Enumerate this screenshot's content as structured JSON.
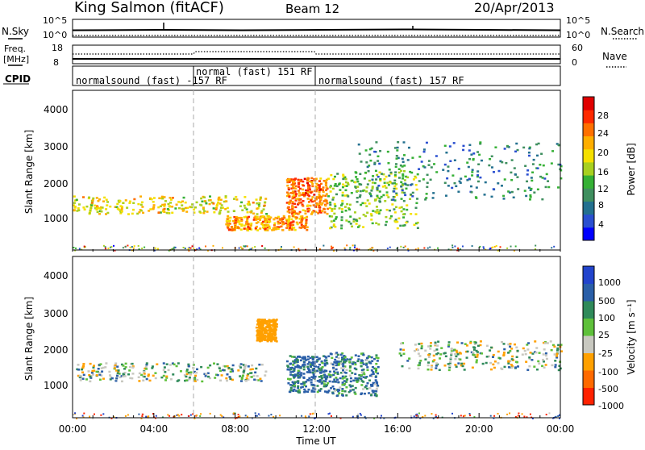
{
  "header": {
    "station": "King Salmon (fitACF)",
    "beam": "Beam 12",
    "date": "20/Apr/2013"
  },
  "strips": {
    "nsky_label": "N.Sky",
    "nsearch_label": "N.Search",
    "freq_label_1": "Freq.",
    "freq_label_2": "[MHz]",
    "nave_label": "Nave",
    "cpid_label": "CPID",
    "nsky_ticks": [
      "10^5",
      "10^0"
    ],
    "nsearch_ticks": [
      "10^5",
      "10^0"
    ],
    "freq_ticks": [
      "18",
      "8"
    ],
    "nave_ticks": [
      "60",
      "0"
    ],
    "cpid_segments": [
      {
        "label": "normalsound (fast) -157 RF",
        "start_h": 0,
        "end_h": 6
      },
      {
        "label": "normal (fast) 151 RF",
        "start_h": 6,
        "end_h": 12
      },
      {
        "label": "normalsound (fast) 157 RF",
        "start_h": 12,
        "end_h": 24
      }
    ]
  },
  "axes": {
    "ylabel": "Slant Range [km]",
    "xlabel": "Time UT",
    "yticks": [
      "1000",
      "2000",
      "3000",
      "4000"
    ],
    "xticks": [
      "00:00",
      "04:00",
      "08:00",
      "12:00",
      "16:00",
      "20:00",
      "00:00"
    ]
  },
  "power_colorbar": {
    "label": "Power [dB]",
    "ticks": [
      "4",
      "8",
      "12",
      "16",
      "20",
      "24",
      "28"
    ],
    "colors": [
      "#0000ff",
      "#2a4fd0",
      "#23708f",
      "#3f8f5f",
      "#35b035",
      "#a8d020",
      "#f5e000",
      "#ffae00",
      "#ff7000",
      "#ff2a00",
      "#e00000"
    ]
  },
  "velocity_colorbar": {
    "label": "Velocity [m s⁻¹]",
    "ticks": [
      "1000",
      "500",
      "100",
      "25",
      "-25",
      "-100",
      "-500",
      "-1000"
    ],
    "colors": [
      "#2244cc",
      "#2a5fa8",
      "#2f8a5a",
      "#5ec03a",
      "#c8c8c0",
      "#ffa000",
      "#ff6a00",
      "#ff2200"
    ]
  },
  "chart_data": [
    {
      "type": "heatmap",
      "title": "Power",
      "xlabel": "Time UT",
      "ylabel": "Slant Range [km]",
      "xlim": [
        0,
        24
      ],
      "ylim": [
        180,
        4600
      ],
      "zlabel": "Power [dB]",
      "zlim": [
        0,
        30
      ],
      "echo_regions": [
        {
          "t0": 0,
          "t1": 9.5,
          "r0": 1200,
          "r1": 1700,
          "power_db": 18
        },
        {
          "t0": 7.5,
          "t1": 11.5,
          "r0": 750,
          "r1": 1150,
          "power_db": 22
        },
        {
          "t0": 10.5,
          "t1": 12.5,
          "r0": 1200,
          "r1": 2200,
          "power_db": 24
        },
        {
          "t0": 12.5,
          "t1": 17,
          "r0": 800,
          "r1": 2400,
          "power_db": 14
        },
        {
          "t0": 14,
          "t1": 24,
          "r0": 1600,
          "r1": 3200,
          "power_db": 8
        }
      ]
    },
    {
      "type": "heatmap",
      "title": "Velocity",
      "xlabel": "Time UT",
      "ylabel": "Slant Range [km]",
      "xlim": [
        0,
        24
      ],
      "ylim": [
        180,
        4600
      ],
      "zlabel": "Velocity [m s⁻¹]",
      "zlim": [
        -1000,
        1000
      ],
      "echo_regions": [
        {
          "t0": 0,
          "t1": 9.5,
          "r0": 1200,
          "r1": 1700,
          "velocity": 0
        },
        {
          "t0": 9,
          "t1": 10,
          "r0": 2300,
          "r1": 2900,
          "velocity": -300
        },
        {
          "t0": 10.5,
          "t1": 12.5,
          "r0": 900,
          "r1": 1900,
          "velocity": 150
        },
        {
          "t0": 12.5,
          "t1": 15,
          "r0": 800,
          "r1": 2000,
          "velocity": 100
        },
        {
          "t0": 16,
          "t1": 24,
          "r0": 1500,
          "r1": 2300,
          "velocity": -20
        }
      ]
    }
  ]
}
